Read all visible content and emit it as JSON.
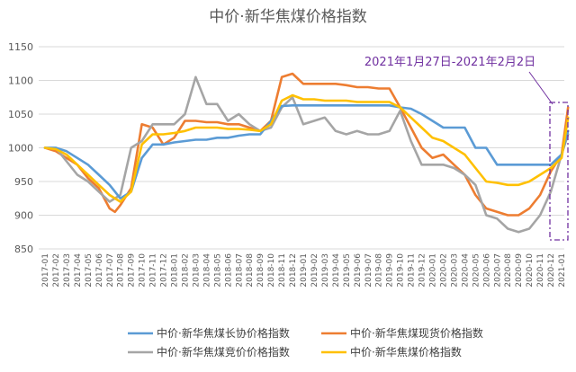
{
  "chart_data": {
    "type": "line",
    "title": "中价·新华焦煤价格指数",
    "xlabel": "",
    "ylabel": "",
    "ylim": [
      850,
      1150
    ],
    "yticks": [
      850,
      900,
      950,
      1000,
      1050,
      1100,
      1150
    ],
    "grid": "horizontal",
    "legend_position": "bottom",
    "annotation": "2021年1月27日-2021年2月2日",
    "x_labels": [
      "2017-01",
      "2017-02",
      "2017-03",
      "2017-04",
      "2017-05",
      "2017-06",
      "2017-07",
      "2017-08",
      "2017-09",
      "2017-10",
      "2017-11",
      "2017-12",
      "2018-01",
      "2018-02",
      "2018-03",
      "2018-04",
      "2018-05",
      "2018-06",
      "2018-07",
      "2018-08",
      "2018-09",
      "2018-10",
      "2018-11",
      "2018-12",
      "2019-01",
      "2019-02",
      "2019-03",
      "2019-04",
      "2019-05",
      "2019-06",
      "2019-07",
      "2019-08",
      "2019-09",
      "2019-10",
      "2019-11",
      "2019-12",
      "2020-01",
      "2020-02",
      "2020-03",
      "2020-04",
      "2020-05",
      "2020-06",
      "2020-07",
      "2020-08",
      "2020-09",
      "2020-10",
      "2020-11",
      "2020-12",
      "2021-01"
    ],
    "series": [
      {
        "name": "中价·新华焦煤长协价格指数",
        "color": "#5b9bd5",
        "points": [
          [
            0,
            1000
          ],
          [
            1,
            1000
          ],
          [
            2,
            995
          ],
          [
            3,
            985
          ],
          [
            4,
            975
          ],
          [
            5,
            960
          ],
          [
            6,
            945
          ],
          [
            7,
            925
          ],
          [
            8,
            935
          ],
          [
            9,
            985
          ],
          [
            10,
            1005
          ],
          [
            11,
            1005
          ],
          [
            12,
            1008
          ],
          [
            13,
            1010
          ],
          [
            14,
            1012
          ],
          [
            15,
            1012
          ],
          [
            16,
            1015
          ],
          [
            17,
            1015
          ],
          [
            18,
            1018
          ],
          [
            19,
            1020
          ],
          [
            20,
            1020
          ],
          [
            21,
            1040
          ],
          [
            22,
            1062
          ],
          [
            23,
            1063
          ],
          [
            24,
            1063
          ],
          [
            25,
            1063
          ],
          [
            26,
            1063
          ],
          [
            27,
            1063
          ],
          [
            28,
            1063
          ],
          [
            29,
            1063
          ],
          [
            30,
            1063
          ],
          [
            31,
            1063
          ],
          [
            32,
            1063
          ],
          [
            33,
            1060
          ],
          [
            34,
            1058
          ],
          [
            35,
            1050
          ],
          [
            36,
            1040
          ],
          [
            37,
            1030
          ],
          [
            38,
            1030
          ],
          [
            39,
            1030
          ],
          [
            40,
            1000
          ],
          [
            41,
            1000
          ],
          [
            42,
            975
          ],
          [
            43,
            975
          ],
          [
            44,
            975
          ],
          [
            45,
            975
          ],
          [
            46,
            975
          ],
          [
            47,
            975
          ],
          [
            48,
            990
          ],
          [
            48.6,
            1025
          ]
        ]
      },
      {
        "name": "中价·新华焦煤现货价格指数",
        "color": "#ed7d31",
        "points": [
          [
            0,
            1000
          ],
          [
            1,
            995
          ],
          [
            2,
            985
          ],
          [
            3,
            975
          ],
          [
            4,
            955
          ],
          [
            5,
            940
          ],
          [
            6,
            910
          ],
          [
            6.5,
            905
          ],
          [
            7,
            915
          ],
          [
            8,
            940
          ],
          [
            9,
            1035
          ],
          [
            10,
            1030
          ],
          [
            11,
            1005
          ],
          [
            12,
            1015
          ],
          [
            13,
            1040
          ],
          [
            14,
            1040
          ],
          [
            15,
            1038
          ],
          [
            16,
            1038
          ],
          [
            17,
            1035
          ],
          [
            18,
            1035
          ],
          [
            19,
            1030
          ],
          [
            20,
            1025
          ],
          [
            21,
            1040
          ],
          [
            22,
            1105
          ],
          [
            23,
            1110
          ],
          [
            24,
            1095
          ],
          [
            25,
            1095
          ],
          [
            26,
            1095
          ],
          [
            27,
            1095
          ],
          [
            28,
            1093
          ],
          [
            29,
            1090
          ],
          [
            30,
            1090
          ],
          [
            31,
            1088
          ],
          [
            32,
            1088
          ],
          [
            33,
            1060
          ],
          [
            34,
            1030
          ],
          [
            35,
            1000
          ],
          [
            36,
            985
          ],
          [
            37,
            990
          ],
          [
            38,
            975
          ],
          [
            39,
            960
          ],
          [
            40,
            930
          ],
          [
            41,
            910
          ],
          [
            42,
            905
          ],
          [
            43,
            900
          ],
          [
            44,
            900
          ],
          [
            45,
            910
          ],
          [
            46,
            930
          ],
          [
            47,
            965
          ],
          [
            48,
            990
          ],
          [
            48.6,
            1060
          ]
        ]
      },
      {
        "name": "中价·新华焦煤竞价价格指数",
        "color": "#a5a5a5",
        "points": [
          [
            0,
            1000
          ],
          [
            1,
            1000
          ],
          [
            2,
            980
          ],
          [
            3,
            960
          ],
          [
            4,
            950
          ],
          [
            5,
            935
          ],
          [
            6,
            920
          ],
          [
            7,
            930
          ],
          [
            8,
            1000
          ],
          [
            9,
            1010
          ],
          [
            10,
            1035
          ],
          [
            11,
            1035
          ],
          [
            12,
            1035
          ],
          [
            13,
            1050
          ],
          [
            14,
            1105
          ],
          [
            15,
            1065
          ],
          [
            16,
            1065
          ],
          [
            17,
            1040
          ],
          [
            18,
            1050
          ],
          [
            19,
            1035
          ],
          [
            20,
            1025
          ],
          [
            21,
            1030
          ],
          [
            22,
            1060
          ],
          [
            23,
            1075
          ],
          [
            24,
            1035
          ],
          [
            25,
            1040
          ],
          [
            26,
            1045
          ],
          [
            27,
            1025
          ],
          [
            28,
            1020
          ],
          [
            29,
            1025
          ],
          [
            30,
            1020
          ],
          [
            31,
            1020
          ],
          [
            32,
            1025
          ],
          [
            33,
            1055
          ],
          [
            34,
            1010
          ],
          [
            35,
            975
          ],
          [
            36,
            975
          ],
          [
            37,
            975
          ],
          [
            38,
            970
          ],
          [
            39,
            960
          ],
          [
            40,
            945
          ],
          [
            41,
            900
          ],
          [
            42,
            895
          ],
          [
            43,
            880
          ],
          [
            44,
            875
          ],
          [
            45,
            880
          ],
          [
            46,
            900
          ],
          [
            47,
            935
          ],
          [
            48,
            990
          ],
          [
            48.6,
            1020
          ]
        ]
      },
      {
        "name": "中价·新华焦煤价格指数",
        "color": "#ffc000",
        "points": [
          [
            0,
            1000
          ],
          [
            1,
            998
          ],
          [
            2,
            990
          ],
          [
            3,
            975
          ],
          [
            4,
            960
          ],
          [
            5,
            945
          ],
          [
            6,
            930
          ],
          [
            7,
            920
          ],
          [
            8,
            935
          ],
          [
            9,
            1005
          ],
          [
            10,
            1020
          ],
          [
            11,
            1020
          ],
          [
            12,
            1022
          ],
          [
            13,
            1025
          ],
          [
            14,
            1030
          ],
          [
            15,
            1030
          ],
          [
            16,
            1030
          ],
          [
            17,
            1028
          ],
          [
            18,
            1028
          ],
          [
            19,
            1027
          ],
          [
            20,
            1025
          ],
          [
            21,
            1035
          ],
          [
            22,
            1070
          ],
          [
            23,
            1078
          ],
          [
            24,
            1072
          ],
          [
            25,
            1072
          ],
          [
            26,
            1070
          ],
          [
            27,
            1070
          ],
          [
            28,
            1070
          ],
          [
            29,
            1068
          ],
          [
            30,
            1068
          ],
          [
            31,
            1068
          ],
          [
            32,
            1068
          ],
          [
            33,
            1060
          ],
          [
            34,
            1045
          ],
          [
            35,
            1030
          ],
          [
            36,
            1015
          ],
          [
            37,
            1010
          ],
          [
            38,
            1000
          ],
          [
            39,
            990
          ],
          [
            40,
            970
          ],
          [
            41,
            950
          ],
          [
            42,
            948
          ],
          [
            43,
            945
          ],
          [
            44,
            945
          ],
          [
            45,
            950
          ],
          [
            46,
            960
          ],
          [
            47,
            970
          ],
          [
            48,
            985
          ],
          [
            48.6,
            1045
          ]
        ]
      }
    ]
  }
}
